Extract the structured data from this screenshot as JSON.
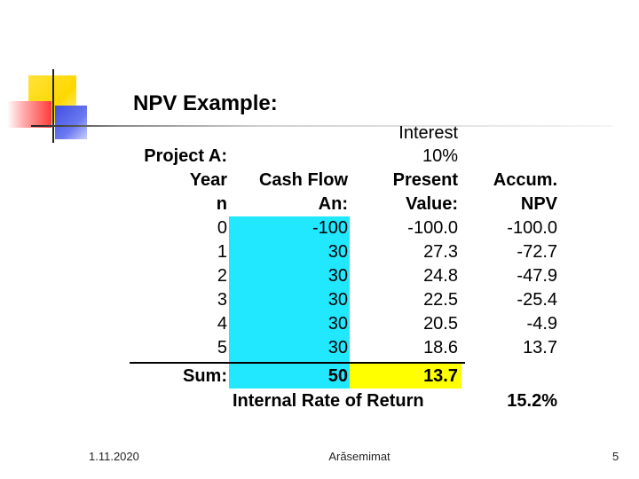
{
  "slide": {
    "title": "NPV Example:",
    "labels": {
      "project": "Project A:",
      "year": "Year",
      "n": "n",
      "sum": "Sum:",
      "cash_flow": "Cash Flow",
      "an": "An:",
      "interest": "Interest",
      "rate": "10%",
      "present": "Present",
      "value": "Value:",
      "accum": "Accum.",
      "npv": "NPV",
      "irr_label": "Internal Rate of Return",
      "irr_value": "15.2%"
    },
    "rows": [
      {
        "n": "0",
        "cash_flow": "-100",
        "pv": "-100.0",
        "accum": "-100.0"
      },
      {
        "n": "1",
        "cash_flow": "30",
        "pv": "27.3",
        "accum": "-72.7"
      },
      {
        "n": "2",
        "cash_flow": "30",
        "pv": "24.8",
        "accum": "-47.9"
      },
      {
        "n": "3",
        "cash_flow": "30",
        "pv": "22.5",
        "accum": "-25.4"
      },
      {
        "n": "4",
        "cash_flow": "30",
        "pv": "20.5",
        "accum": "-4.9"
      },
      {
        "n": "5",
        "cash_flow": "30",
        "pv": "18.6",
        "accum": "13.7"
      }
    ],
    "sum": {
      "cash_flow": "50",
      "pv": "13.7"
    }
  },
  "footer": {
    "date": "1.11.2020",
    "author": "Arăsemimat",
    "page": "5"
  },
  "colors": {
    "cash_flow_highlight": "#22e8ff",
    "npv_highlight": "#ffff00"
  }
}
